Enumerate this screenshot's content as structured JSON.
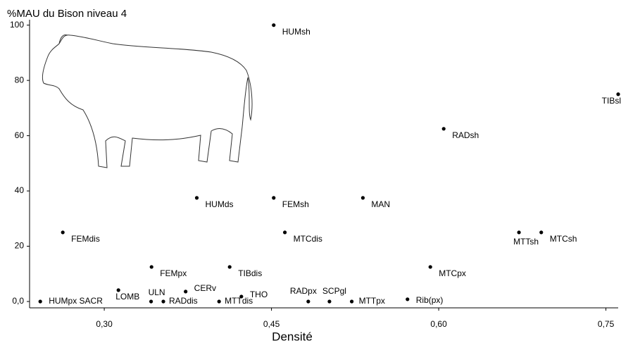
{
  "chart_data": {
    "type": "scatter",
    "title": "%MAU du Bison niveau 4",
    "x_label": "Densité",
    "xlim": [
      0.233,
      0.761
    ],
    "ylim": [
      -2.3,
      104
    ],
    "xticks": [
      {
        "value": 0.3,
        "label": "0,30"
      },
      {
        "value": 0.45,
        "label": "0,45"
      },
      {
        "value": 0.6,
        "label": "0,60"
      },
      {
        "value": 0.75,
        "label": "0,75"
      }
    ],
    "yticks": [
      {
        "value": 0,
        "label": "0,0"
      },
      20,
      40,
      60,
      80,
      100
    ],
    "color": "#000000",
    "point_labels": [
      "HUMsh",
      "TIBsl",
      "RADsh",
      "HUMds",
      "FEMsh",
      "MAN",
      "FEMdis",
      "MTCdis",
      "MTTsh",
      "MTCsh",
      "FEMpx",
      "TIBdis",
      "MTCpx",
      "LOMB",
      "ULN",
      "CERv",
      "THO",
      "HUMpx SACR",
      "RADdis",
      "MTTdis",
      "RADpx",
      "SCPgl",
      "MTTpx",
      "Rib(px)"
    ],
    "x": [
      0.452,
      0.761,
      0.6045,
      0.383,
      0.452,
      0.532,
      0.2628,
      0.462,
      0.672,
      0.692,
      0.3424,
      0.4125,
      0.5925,
      0.3127,
      0.342,
      0.373,
      0.423,
      0.2426,
      0.353,
      0.403,
      0.483,
      0.502,
      0.522,
      0.572
    ],
    "values": [
      100,
      75,
      62.5,
      37.5,
      37.5,
      37.5,
      25,
      25,
      25,
      25,
      12.5,
      12.5,
      12.5,
      4.1,
      0,
      3.6,
      1.8,
      0,
      0,
      0,
      0,
      0,
      0,
      0.8
    ]
  }
}
